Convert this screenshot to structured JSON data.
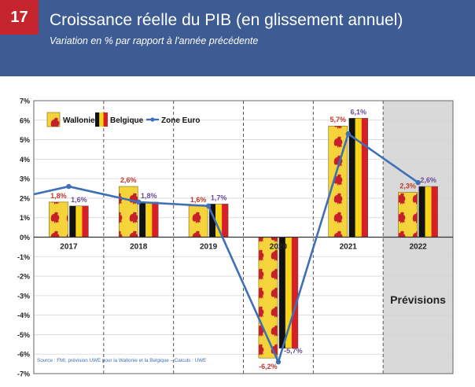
{
  "header": {
    "badge": "17",
    "title": "Croissance réelle du PIB (en glissement annuel)",
    "subtitle": "Variation en % par rapport à l'année précédente"
  },
  "chart_data": {
    "type": "bar",
    "categories": [
      "2017",
      "2018",
      "2019",
      "2020",
      "2021",
      "2022"
    ],
    "series": [
      {
        "name": "Wallonie",
        "kind": "bar",
        "values": [
          1.8,
          2.6,
          1.6,
          -6.2,
          5.7,
          2.3
        ],
        "labels": [
          "1,8%",
          "2,6%",
          "1,6%",
          "-6,2%",
          "5,7%",
          "2,3%"
        ],
        "color": "#c0392b"
      },
      {
        "name": "Belgique",
        "kind": "bar",
        "values": [
          1.6,
          1.8,
          1.7,
          -5.7,
          6.1,
          2.6
        ],
        "labels": [
          "1,6%",
          "1,8%",
          "1,7%",
          "-5,7%",
          "6,1%",
          "2,6%"
        ],
        "color": "#6a4c93"
      },
      {
        "name": "Zone Euro",
        "kind": "line",
        "values": [
          2.6,
          1.8,
          1.6,
          -6.4,
          5.3,
          2.8
        ],
        "color": "#3f6fb5"
      }
    ],
    "ylim": [
      -7,
      7
    ],
    "yticks": [
      {
        "v": 7,
        "label": "7%"
      },
      {
        "v": 6,
        "label": "6%"
      },
      {
        "v": 5,
        "label": "5%"
      },
      {
        "v": 4,
        "label": "4%"
      },
      {
        "v": 3,
        "label": "3%"
      },
      {
        "v": 2,
        "label": "2%"
      },
      {
        "v": 1,
        "label": "1%"
      },
      {
        "v": 0,
        "label": "0%"
      },
      {
        "v": -1,
        "label": "-1%"
      },
      {
        "v": -2,
        "label": "-2%"
      },
      {
        "v": -3,
        "label": "-3%"
      },
      {
        "v": -4,
        "label": "-4%"
      },
      {
        "v": -5,
        "label": "-5%"
      },
      {
        "v": -6,
        "label": "-6%"
      },
      {
        "v": -7,
        "label": "-7%"
      }
    ],
    "forecast_label": "Prévisions",
    "source": "Source : FMI, prévision UWE pour la Wallonie et la Belgique – Calculs : UWE",
    "legend_position": "top-left",
    "grid": true
  },
  "colors": {
    "header_bg": "#3d5c93",
    "badge_bg": "#c5262e",
    "wallonie_yellow": "#f5d33a",
    "wallonie_red": "#c8202a",
    "belgium_black": "#111111",
    "belgium_yellow": "#f7d417",
    "belgium_red": "#d81f26",
    "forecast_bg": "#d9d9d9"
  }
}
